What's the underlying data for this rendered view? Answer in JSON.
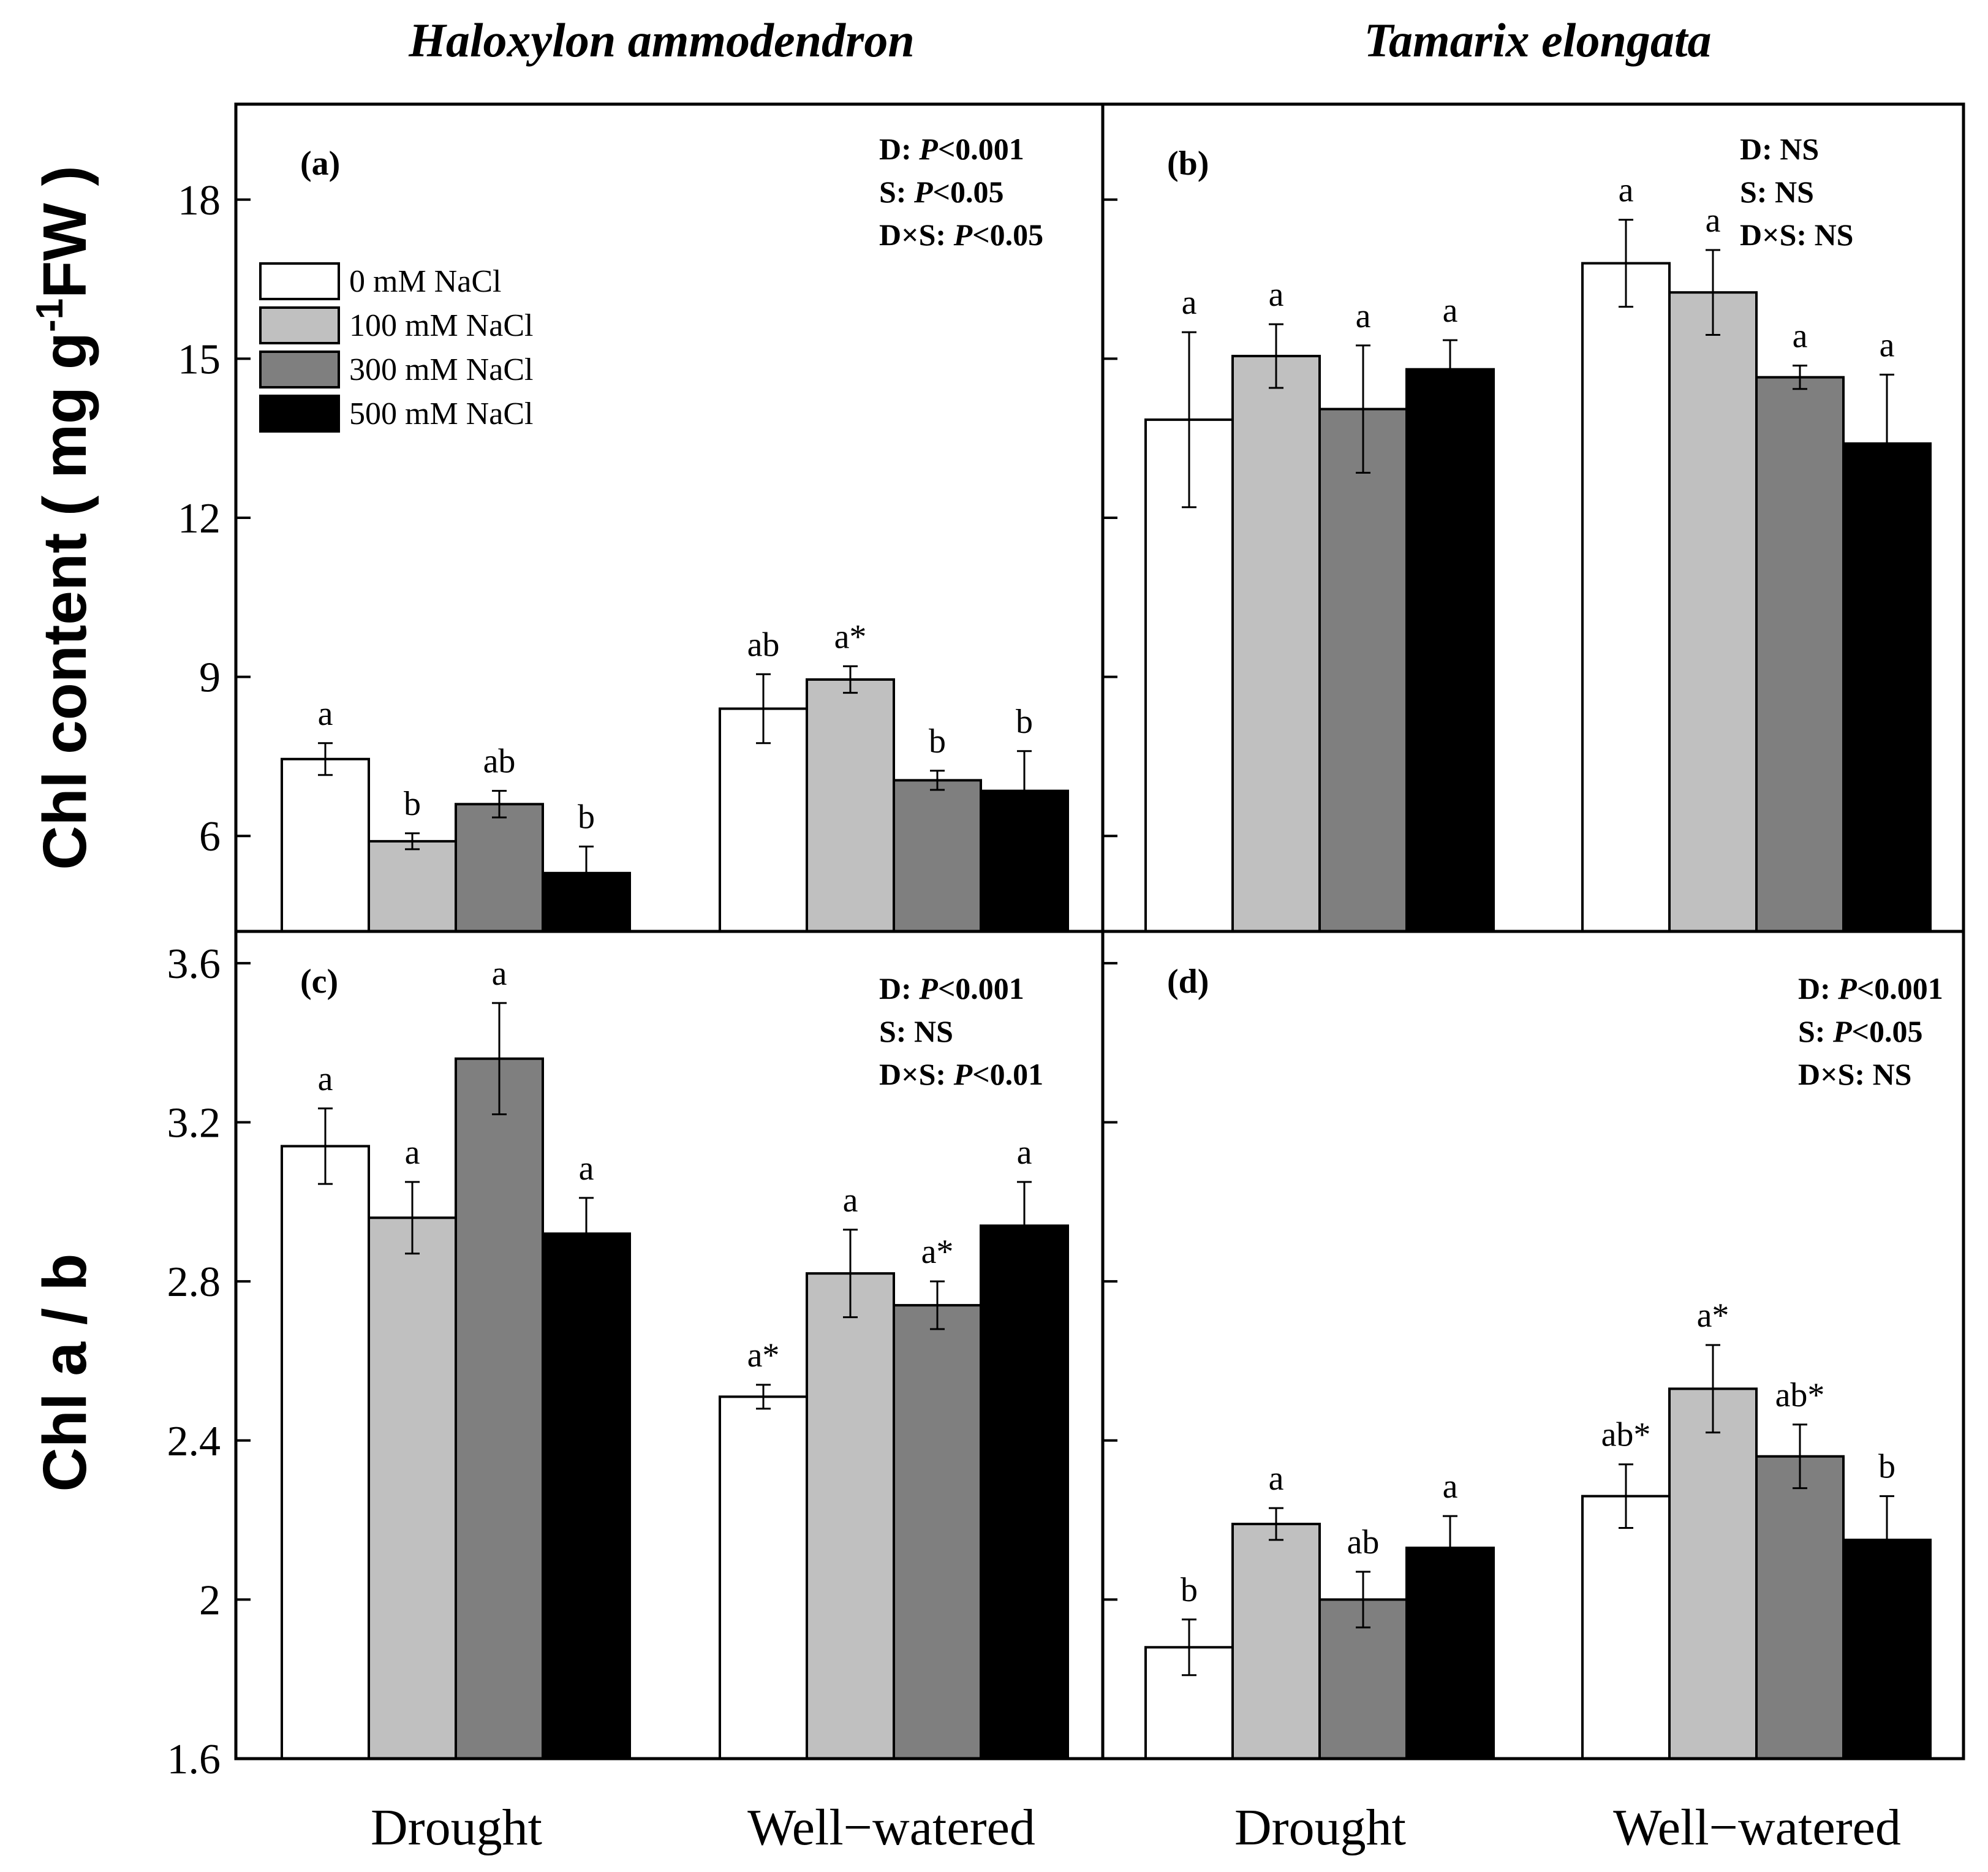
{
  "chart_data": {
    "type": "bar",
    "groups": [
      "Drought",
      "Well−watered"
    ],
    "legend": [
      "0 mM NaCl",
      "100 mM NaCl",
      "300 mM NaCl",
      "500 mM NaCl"
    ],
    "series_colors": [
      "#ffffff",
      "#c0c0c0",
      "#7f7f7f",
      "#000000"
    ],
    "column_titles": [
      "Haloxylon ammodendron",
      "Tamarix elongata"
    ],
    "ylabels": {
      "top": {
        "base": "Chl content ( mg g",
        "sup": "-1",
        "tail": "FW )"
      },
      "bottom": "Chl a / b"
    },
    "panels": [
      {
        "label": "(a)",
        "species": "Haloxylon ammodendron",
        "ylim": [
          4.2,
          19.8
        ],
        "yticks": [
          6,
          9,
          12,
          15,
          18
        ],
        "stats": [
          {
            "name": "D: ",
            "p": "P",
            "v": "<0.001"
          },
          {
            "name": "S: ",
            "p": "P",
            "v": "<0.05"
          },
          {
            "name": "D×S: ",
            "p": "P",
            "v": "<0.05"
          }
        ],
        "series": [
          {
            "group": "Drought",
            "values": [
              7.45,
              5.9,
              6.6,
              5.3
            ],
            "errors": [
              0.3,
              0.15,
              0.25,
              0.5
            ],
            "letters": [
              "a",
              "b",
              "ab",
              "b"
            ]
          },
          {
            "group": "Well−watered",
            "values": [
              8.4,
              8.95,
              7.05,
              6.85
            ],
            "errors": [
              0.65,
              0.25,
              0.18,
              0.75
            ],
            "letters": [
              "ab",
              "a*",
              "b",
              "b"
            ]
          }
        ]
      },
      {
        "label": "(b)",
        "species": "Tamarix elongata",
        "ylim": [
          4.2,
          19.8
        ],
        "yticks": [
          6,
          9,
          12,
          15,
          18
        ],
        "stats": [
          {
            "name": "D: ",
            "p": "",
            "v": "NS"
          },
          {
            "name": "S: ",
            "p": "",
            "v": "NS"
          },
          {
            "name": "D×S: ",
            "p": "",
            "v": "NS"
          }
        ],
        "series": [
          {
            "group": "Drought",
            "values": [
              13.85,
              15.05,
              14.05,
              14.8
            ],
            "errors": [
              1.65,
              0.6,
              1.2,
              0.55
            ],
            "letters": [
              "a",
              "a",
              "a",
              "a"
            ]
          },
          {
            "group": "Well−watered",
            "values": [
              16.8,
              16.25,
              14.65,
              13.4
            ],
            "errors": [
              0.82,
              0.8,
              0.22,
              1.3
            ],
            "letters": [
              "a",
              "a",
              "a",
              "a"
            ]
          }
        ]
      },
      {
        "label": "(c)",
        "species": "Haloxylon ammodendron",
        "ylim": [
          1.6,
          3.68
        ],
        "yticks": [
          1.6,
          2.0,
          2.4,
          2.8,
          3.2,
          3.6
        ],
        "stats": [
          {
            "name": "D: ",
            "p": "P",
            "v": "<0.001"
          },
          {
            "name": "S: ",
            "p": "",
            "v": "NS"
          },
          {
            "name": "D×S: ",
            "p": "P",
            "v": "<0.01"
          }
        ],
        "series": [
          {
            "group": "Drought",
            "values": [
              3.14,
              2.96,
              3.36,
              2.92
            ],
            "errors": [
              0.095,
              0.09,
              0.14,
              0.09
            ],
            "letters": [
              "a",
              "a",
              "a",
              "a"
            ]
          },
          {
            "group": "Well−watered",
            "values": [
              2.51,
              2.82,
              2.74,
              2.94
            ],
            "errors": [
              0.03,
              0.11,
              0.06,
              0.11
            ],
            "letters": [
              "a*",
              "a",
              "a*",
              "a"
            ]
          }
        ]
      },
      {
        "label": "(d)",
        "species": "Tamarix elongata",
        "ylim": [
          1.6,
          3.68
        ],
        "yticks": [
          1.6,
          2.0,
          2.4,
          2.8,
          3.2,
          3.6
        ],
        "stats": [
          {
            "name": "D: ",
            "p": "P",
            "v": "<0.001"
          },
          {
            "name": "S: ",
            "p": "P",
            "v": "<0.05"
          },
          {
            "name": "D×S: ",
            "p": "",
            "v": "NS"
          }
        ],
        "series": [
          {
            "group": "Drought",
            "values": [
              1.88,
              2.19,
              2.0,
              2.13
            ],
            "errors": [
              0.07,
              0.04,
              0.07,
              0.08
            ],
            "letters": [
              "b",
              "a",
              "ab",
              "a"
            ]
          },
          {
            "group": "Well−watered",
            "values": [
              2.26,
              2.53,
              2.36,
              2.15
            ],
            "errors": [
              0.08,
              0.11,
              0.08,
              0.11
            ],
            "letters": [
              "ab*",
              "a*",
              "ab*",
              "b"
            ]
          }
        ]
      }
    ]
  }
}
